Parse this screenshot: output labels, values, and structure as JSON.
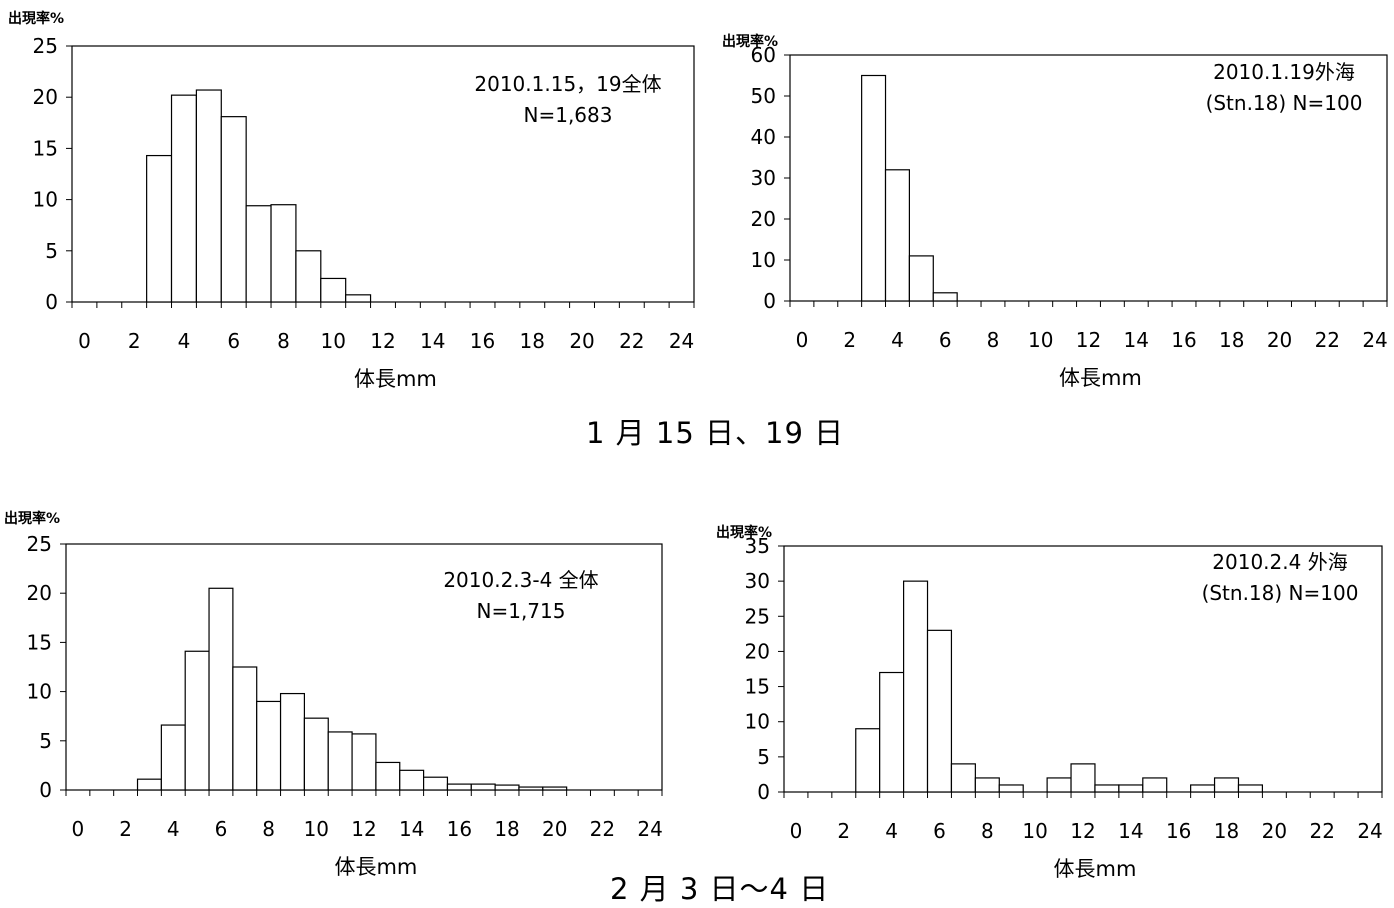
{
  "section_titles": [
    "1 月 15 日、19 日",
    "2 月 3 日～4 日"
  ],
  "chart_data": [
    {
      "type": "bar",
      "annotation": [
        "2010.1.15，19全体",
        "N=1,683"
      ],
      "ylabel": "出現率%",
      "xlabel": "体長mm",
      "ylim": [
        0,
        25
      ],
      "yticks": [
        0,
        5,
        10,
        15,
        20,
        25
      ],
      "xlim": [
        0,
        25
      ],
      "xticks": [
        0,
        2,
        4,
        6,
        8,
        10,
        12,
        14,
        16,
        18,
        20,
        22,
        24
      ],
      "categories": [
        0,
        1,
        2,
        3,
        4,
        5,
        6,
        7,
        8,
        9,
        10,
        11,
        12,
        13,
        14,
        15,
        16,
        17,
        18,
        19,
        20,
        21,
        22,
        23,
        24
      ],
      "values": [
        0,
        0,
        0,
        14.3,
        20.2,
        20.7,
        18.1,
        9.4,
        9.5,
        5.0,
        2.3,
        0.7,
        0,
        0,
        0,
        0,
        0,
        0,
        0,
        0,
        0,
        0,
        0,
        0,
        0
      ]
    },
    {
      "type": "bar",
      "annotation": [
        "2010.1.19外海",
        "(Stn.18) N=100"
      ],
      "ylabel": "出現率%",
      "xlabel": "体長mm",
      "ylim": [
        0,
        60
      ],
      "yticks": [
        0,
        10,
        20,
        30,
        40,
        50,
        60
      ],
      "xlim": [
        0,
        25
      ],
      "xticks": [
        0,
        2,
        4,
        6,
        8,
        10,
        12,
        14,
        16,
        18,
        20,
        22,
        24
      ],
      "categories": [
        0,
        1,
        2,
        3,
        4,
        5,
        6,
        7,
        8,
        9,
        10,
        11,
        12,
        13,
        14,
        15,
        16,
        17,
        18,
        19,
        20,
        21,
        22,
        23,
        24
      ],
      "values": [
        0,
        0,
        0,
        55,
        32,
        11,
        2,
        0,
        0,
        0,
        0,
        0,
        0,
        0,
        0,
        0,
        0,
        0,
        0,
        0,
        0,
        0,
        0,
        0,
        0
      ]
    },
    {
      "type": "bar",
      "annotation": [
        "2010.2.3-4 全体",
        "N=1,715"
      ],
      "ylabel": "出現率%",
      "xlabel": "体長mm",
      "ylim": [
        0,
        25
      ],
      "yticks": [
        0,
        5,
        10,
        15,
        20,
        25
      ],
      "xlim": [
        0,
        25
      ],
      "xticks": [
        0,
        2,
        4,
        6,
        8,
        10,
        12,
        14,
        16,
        18,
        20,
        22,
        24
      ],
      "categories": [
        0,
        1,
        2,
        3,
        4,
        5,
        6,
        7,
        8,
        9,
        10,
        11,
        12,
        13,
        14,
        15,
        16,
        17,
        18,
        19,
        20,
        21,
        22,
        23,
        24
      ],
      "values": [
        0,
        0,
        0,
        1.1,
        6.6,
        14.1,
        20.5,
        12.5,
        9.0,
        9.8,
        7.3,
        5.9,
        5.7,
        2.8,
        2.0,
        1.3,
        0.6,
        0.6,
        0.5,
        0.3,
        0.3,
        0,
        0,
        0,
        0
      ]
    },
    {
      "type": "bar",
      "annotation": [
        "2010.2.4 外海",
        "(Stn.18) N=100"
      ],
      "ylabel": "出現率%",
      "xlabel": "体長mm",
      "ylim": [
        0,
        35
      ],
      "yticks": [
        0,
        5,
        10,
        15,
        20,
        25,
        30,
        35
      ],
      "xlim": [
        0,
        25
      ],
      "xticks": [
        0,
        2,
        4,
        6,
        8,
        10,
        12,
        14,
        16,
        18,
        20,
        22,
        24
      ],
      "categories": [
        0,
        1,
        2,
        3,
        4,
        5,
        6,
        7,
        8,
        9,
        10,
        11,
        12,
        13,
        14,
        15,
        16,
        17,
        18,
        19,
        20,
        21,
        22,
        23,
        24
      ],
      "values": [
        0,
        0,
        0,
        9,
        17,
        30,
        23,
        4,
        2,
        1,
        0,
        2,
        4,
        1,
        1,
        2,
        0,
        1,
        2,
        1,
        0,
        0,
        0,
        0,
        0
      ]
    }
  ]
}
